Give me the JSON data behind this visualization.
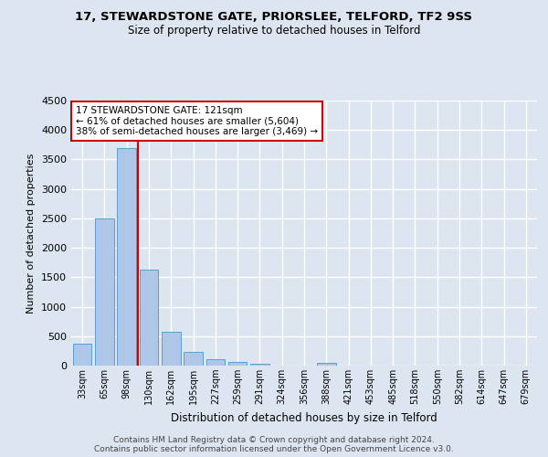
{
  "title_line1": "17, STEWARDSTONE GATE, PRIORSLEE, TELFORD, TF2 9SS",
  "title_line2": "Size of property relative to detached houses in Telford",
  "xlabel": "Distribution of detached houses by size in Telford",
  "ylabel": "Number of detached properties",
  "categories": [
    "33sqm",
    "65sqm",
    "98sqm",
    "130sqm",
    "162sqm",
    "195sqm",
    "227sqm",
    "259sqm",
    "291sqm",
    "324sqm",
    "356sqm",
    "388sqm",
    "421sqm",
    "453sqm",
    "485sqm",
    "518sqm",
    "550sqm",
    "582sqm",
    "614sqm",
    "647sqm",
    "679sqm"
  ],
  "values": [
    370,
    2500,
    3700,
    1630,
    580,
    230,
    110,
    60,
    30,
    0,
    0,
    50,
    0,
    0,
    0,
    0,
    0,
    0,
    0,
    0,
    0
  ],
  "bar_color": "#aec6e8",
  "bar_edgecolor": "#5a9fd4",
  "vline_color": "#cc0000",
  "annotation_text": "17 STEWARDSTONE GATE: 121sqm\n← 61% of detached houses are smaller (5,604)\n38% of semi-detached houses are larger (3,469) →",
  "annotation_box_color": "#ffffff",
  "annotation_box_edgecolor": "#cc0000",
  "ylim": [
    0,
    4500
  ],
  "yticks": [
    0,
    500,
    1000,
    1500,
    2000,
    2500,
    3000,
    3500,
    4000,
    4500
  ],
  "background_color": "#dde6f0",
  "grid_color": "#ffffff",
  "footer_line1": "Contains HM Land Registry data © Crown copyright and database right 2024.",
  "footer_line2": "Contains public sector information licensed under the Open Government Licence v3.0."
}
